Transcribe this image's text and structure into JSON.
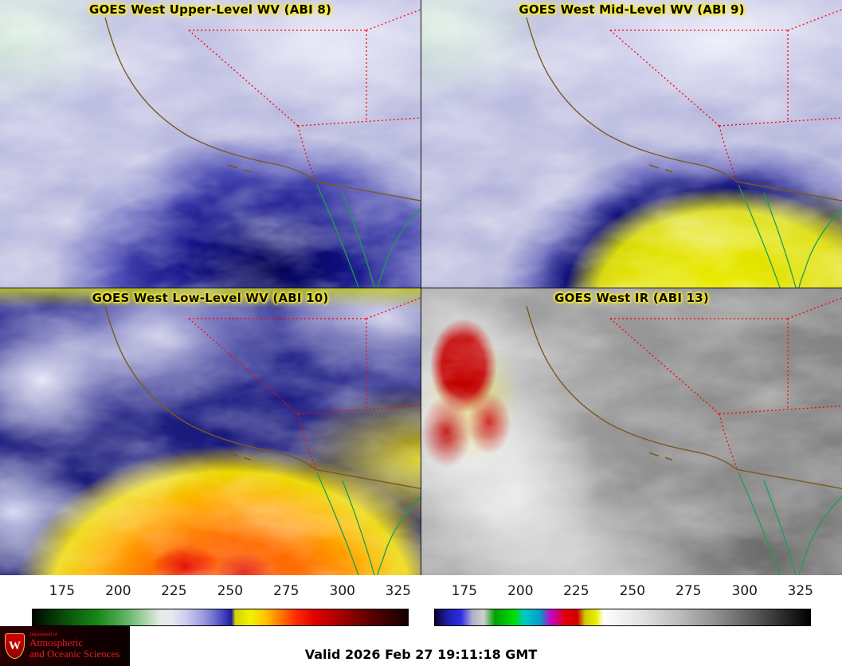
{
  "panels": [
    {
      "title": "GOES West Upper-Level WV (ABI 8)"
    },
    {
      "title": "GOES West Mid-Level WV (ABI 9)"
    },
    {
      "title": "GOES West Low-Level WV (ABI 10)"
    },
    {
      "title": "GOES West IR (ABI 13)"
    }
  ],
  "colorbars": [
    {
      "name": "wv-enhancement-scale",
      "ticks": [
        "175",
        "200",
        "225",
        "250",
        "275",
        "300",
        "325"
      ],
      "tick_positions_pct": [
        8,
        22.9,
        37.7,
        52.6,
        67.5,
        82.4,
        97.2
      ],
      "stops": [
        {
          "p": 0,
          "c": "#000500"
        },
        {
          "p": 4,
          "c": "#032a03"
        },
        {
          "p": 10,
          "c": "#0a5a0a"
        },
        {
          "p": 17,
          "c": "#168516"
        },
        {
          "p": 24,
          "c": "#55ad55"
        },
        {
          "p": 30,
          "c": "#a8d4a8"
        },
        {
          "p": 34,
          "c": "#e4ece4"
        },
        {
          "p": 37,
          "c": "#e8e8f2"
        },
        {
          "p": 41,
          "c": "#ccccee"
        },
        {
          "p": 46,
          "c": "#9494dc"
        },
        {
          "p": 50,
          "c": "#5252c4"
        },
        {
          "p": 53,
          "c": "#1c1c9e"
        },
        {
          "p": 54,
          "c": "#d2d200"
        },
        {
          "p": 58,
          "c": "#f2f200"
        },
        {
          "p": 62,
          "c": "#ffc400"
        },
        {
          "p": 66,
          "c": "#ff7a00"
        },
        {
          "p": 70,
          "c": "#ff2e00"
        },
        {
          "p": 75,
          "c": "#e10000"
        },
        {
          "p": 82,
          "c": "#a60000"
        },
        {
          "p": 90,
          "c": "#5c0000"
        },
        {
          "p": 100,
          "c": "#150000"
        }
      ]
    },
    {
      "name": "ir-enhancement-scale",
      "ticks": [
        "175",
        "200",
        "225",
        "250",
        "275",
        "300",
        "325"
      ],
      "tick_positions_pct": [
        8,
        22.9,
        37.7,
        52.6,
        67.5,
        82.4,
        97.2
      ],
      "stops": [
        {
          "p": 0,
          "c": "#0d0030"
        },
        {
          "p": 3,
          "c": "#1c1c9c"
        },
        {
          "p": 7,
          "c": "#2e2ee8"
        },
        {
          "p": 10,
          "c": "#b0b0cc"
        },
        {
          "p": 13,
          "c": "#cfcfcf"
        },
        {
          "p": 16,
          "c": "#00a000"
        },
        {
          "p": 21,
          "c": "#00dc00"
        },
        {
          "p": 24,
          "c": "#00c8c8"
        },
        {
          "p": 28,
          "c": "#009ec8"
        },
        {
          "p": 31,
          "c": "#c800c8"
        },
        {
          "p": 35,
          "c": "#e00000"
        },
        {
          "p": 38,
          "c": "#d00000"
        },
        {
          "p": 40,
          "c": "#cccc00"
        },
        {
          "p": 43,
          "c": "#eeee00"
        },
        {
          "p": 45,
          "c": "#ffffff"
        },
        {
          "p": 55,
          "c": "#e2e2e2"
        },
        {
          "p": 65,
          "c": "#bcbcbc"
        },
        {
          "p": 75,
          "c": "#8e8e8e"
        },
        {
          "p": 86,
          "c": "#545454"
        },
        {
          "p": 100,
          "c": "#000000"
        }
      ]
    }
  ],
  "footer": {
    "valid_time": "Valid 2026 Feb 27 19:11:18 GMT"
  },
  "logo": {
    "department": "Department of",
    "line1": "Atmospheric",
    "line2": "and Oceanic Sciences",
    "crest_letter": "W"
  },
  "map_colors": {
    "state_border": "#ff0000",
    "coastline": "#7a5a1e",
    "mexico_outline": "#1e9e50"
  }
}
